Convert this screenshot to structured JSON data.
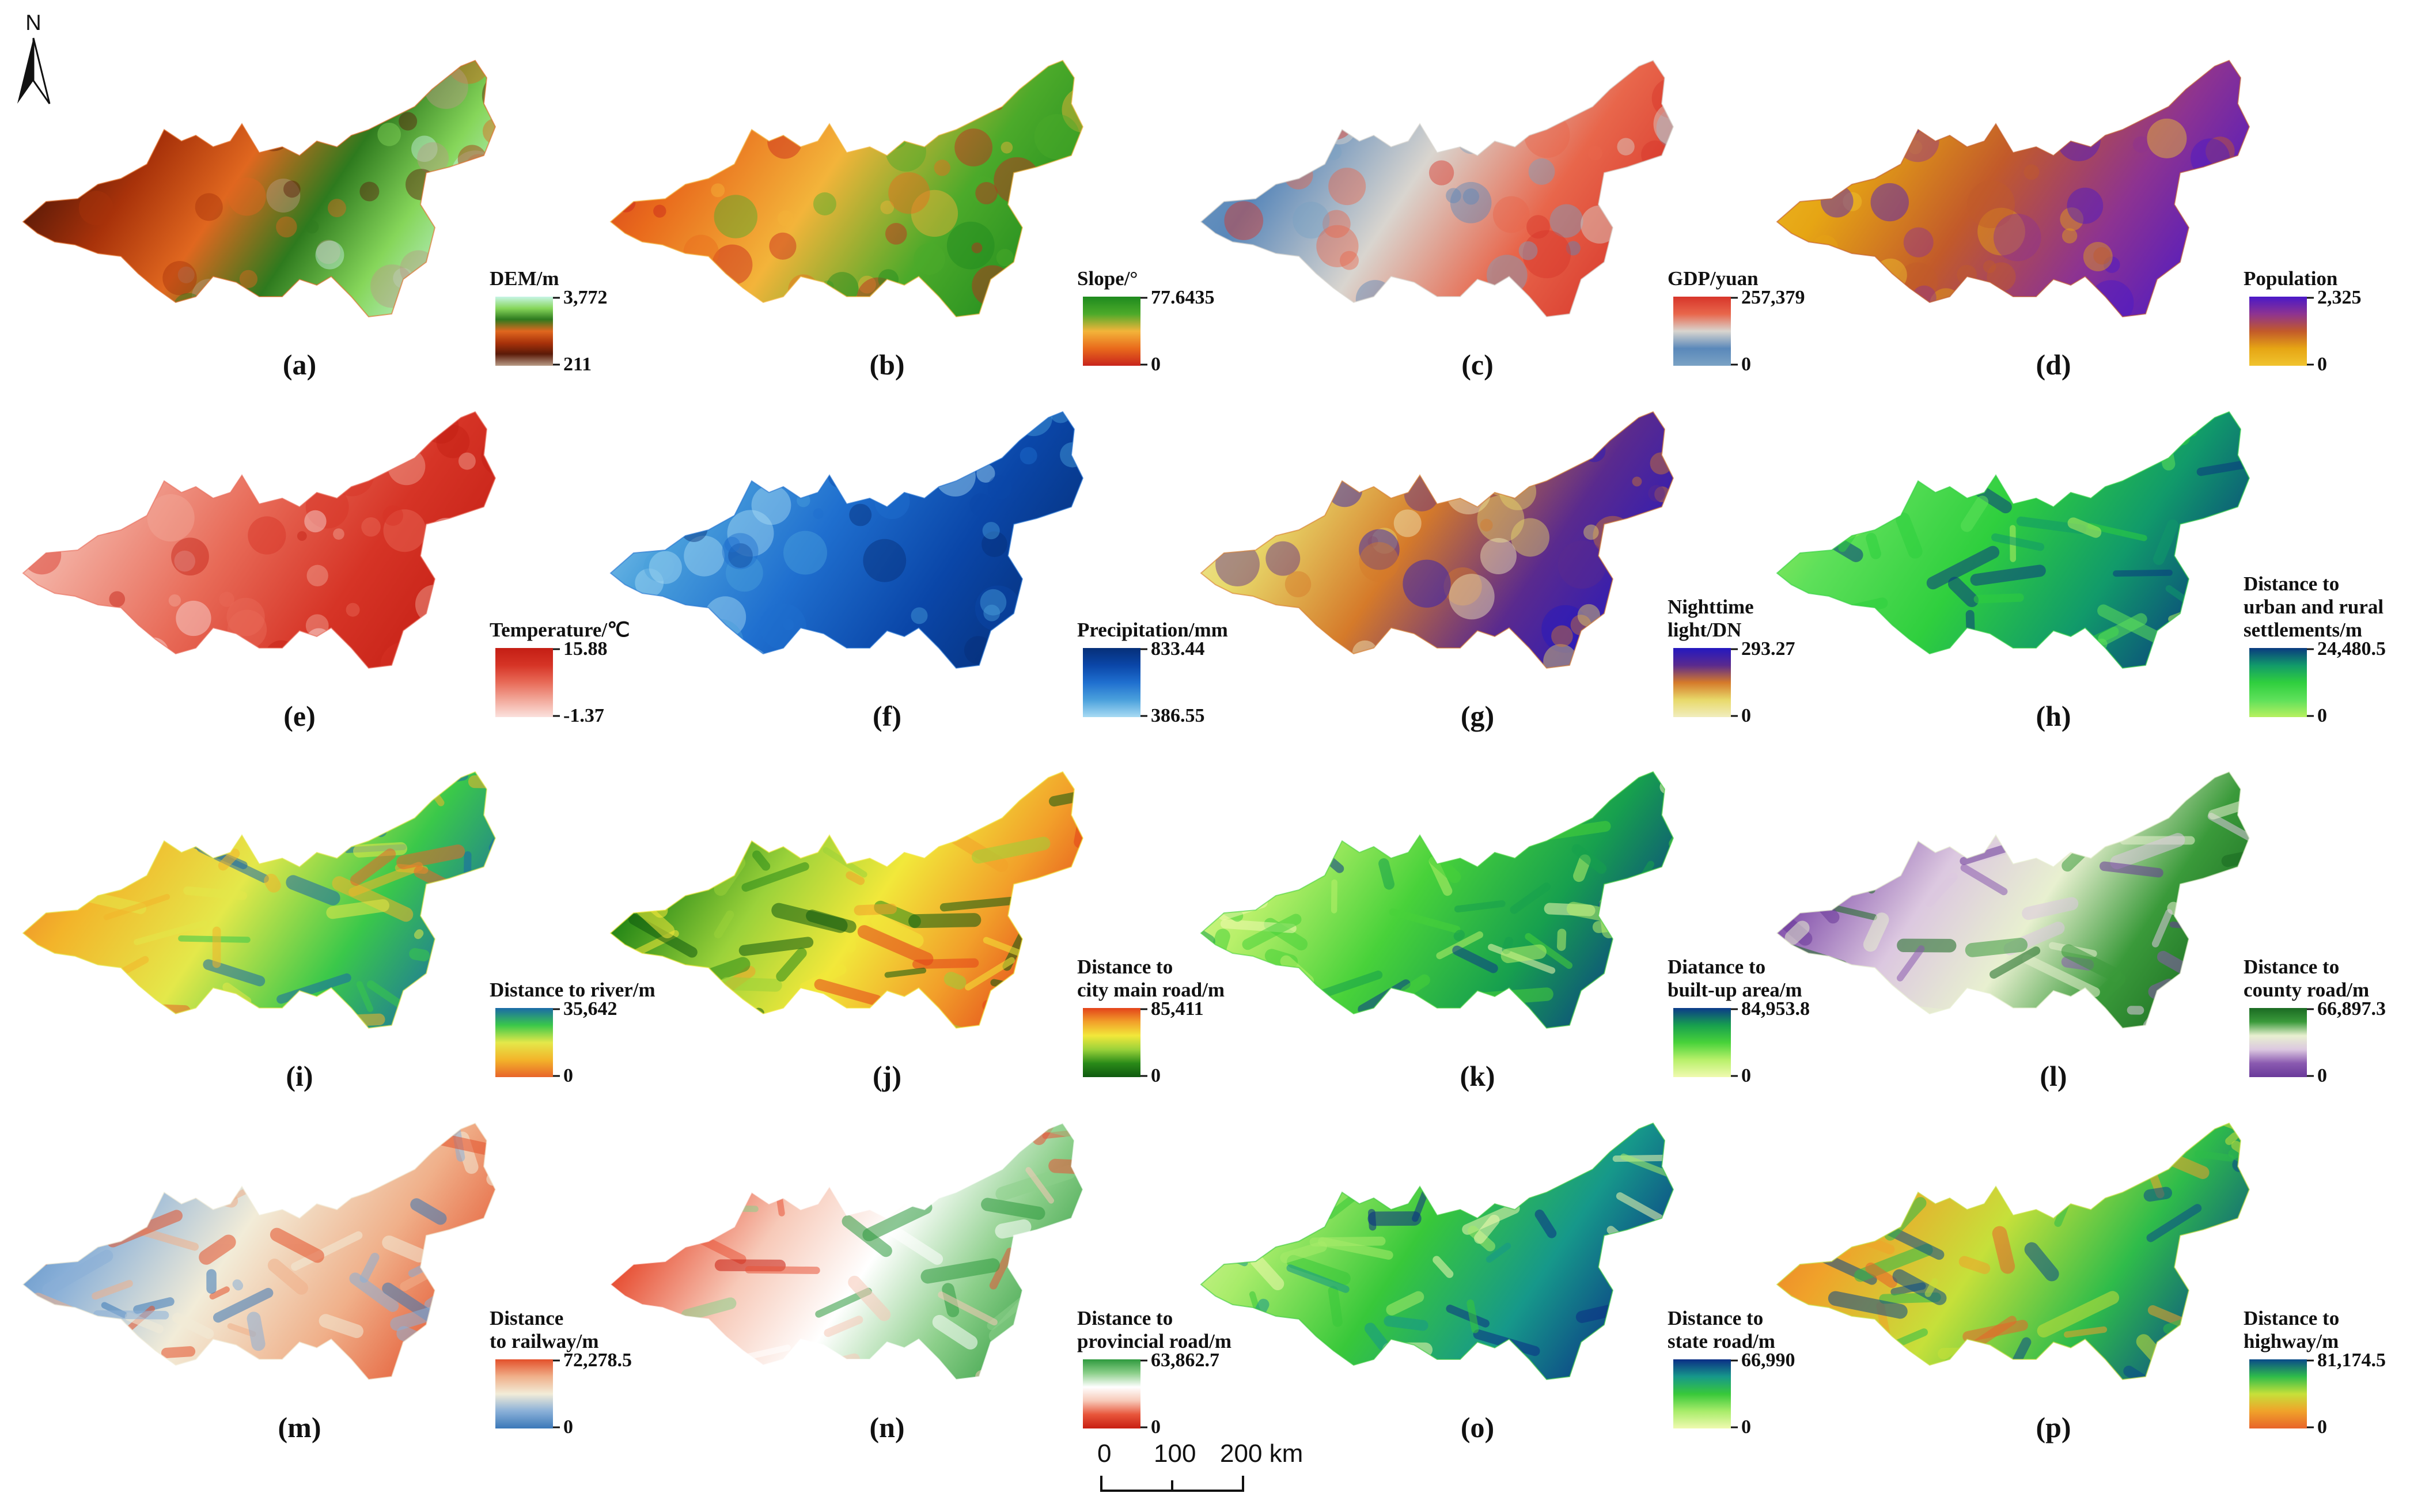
{
  "north_label": "N",
  "scale_bar": {
    "ticks": [
      "0",
      "100",
      "200 km"
    ]
  },
  "colors": {
    "a": [
      "#b89b86",
      "#5b1a08",
      "#a8320a",
      "#e0671f",
      "#2e7a1e",
      "#86d65a",
      "#c7f5e6"
    ],
    "b": [
      "#c8241c",
      "#e96a1c",
      "#f3b43a",
      "#4caa2a",
      "#1e8a1e"
    ],
    "c": [
      "#7aa2c4",
      "#5a88ba",
      "#d9d5cf",
      "#e8664b",
      "#d7352a"
    ],
    "d": [
      "#f0c32e",
      "#e6a514",
      "#c25a2a",
      "#8d3391",
      "#4a18c8"
    ],
    "e": [
      "#fbe1dd",
      "#f2a89a",
      "#e86b58",
      "#d63426",
      "#c41e14"
    ],
    "f": [
      "#a8dbf3",
      "#4aa0dc",
      "#1f6fcf",
      "#0a46a8",
      "#062f78"
    ],
    "g": [
      "#f1edbe",
      "#e8d96a",
      "#d57a2a",
      "#5a2a8e",
      "#2418c0"
    ],
    "h": [
      "#b8f060",
      "#5ee05a",
      "#2fcf3e",
      "#119a6a",
      "#0a3a80"
    ],
    "i": [
      "#e8642a",
      "#f3b42a",
      "#e4e84a",
      "#3ac84a",
      "#1a6aa8"
    ],
    "j": [
      "#0f5a10",
      "#2a8a18",
      "#9bd23a",
      "#f2e83a",
      "#f2a02a",
      "#e3421a"
    ],
    "k": [
      "#f0fab0",
      "#b8f06a",
      "#48d23a",
      "#17a04e",
      "#0b3a8a"
    ],
    "l": [
      "#6a3a9a",
      "#8a5ab0",
      "#dcc8e0",
      "#e8f0d0",
      "#3a9a3a",
      "#1a6a22"
    ],
    "m": [
      "#3a78b8",
      "#8ab0d8",
      "#f2ecd8",
      "#f0b08a",
      "#e3502a"
    ],
    "n": [
      "#c81e12",
      "#e8553a",
      "#f7c9b8",
      "#ffffff",
      "#8ccf8a",
      "#2e9a3e"
    ],
    "o": [
      "#f0fab0",
      "#a8ec6a",
      "#38c83a",
      "#16988a",
      "#0b2e86"
    ],
    "p": [
      "#e8642a",
      "#f0a22a",
      "#c6e03a",
      "#2fbc4a",
      "#0a4a8a"
    ]
  },
  "panels": [
    {
      "id": "a",
      "label": "(a)",
      "legend": [
        "DEM/m"
      ],
      "max": "3,772",
      "min": "211"
    },
    {
      "id": "b",
      "label": "(b)",
      "legend": [
        "Slope/°"
      ],
      "max": "77.6435",
      "min": "0"
    },
    {
      "id": "c",
      "label": "(c)",
      "legend": [
        "GDP/yuan"
      ],
      "max": "257,379",
      "min": "0"
    },
    {
      "id": "d",
      "label": "(d)",
      "legend": [
        "Population"
      ],
      "max": "2,325",
      "min": "0"
    },
    {
      "id": "e",
      "label": "(e)",
      "legend": [
        "Temperature/℃"
      ],
      "max": "15.88",
      "min": "-1.37"
    },
    {
      "id": "f",
      "label": "(f)",
      "legend": [
        "Precipitation/mm"
      ],
      "max": "833.44",
      "min": "386.55"
    },
    {
      "id": "g",
      "label": "(g)",
      "legend": [
        "Nighttime",
        "light/DN"
      ],
      "max": "293.27",
      "min": "0"
    },
    {
      "id": "h",
      "label": "(h)",
      "legend": [
        "Distance to",
        "urban and rural",
        "settlements/m"
      ],
      "max": "24,480.5",
      "min": "0"
    },
    {
      "id": "i",
      "label": "(i)",
      "legend": [
        "Distance to river/m"
      ],
      "max": "35,642",
      "min": "0"
    },
    {
      "id": "j",
      "label": "(j)",
      "legend": [
        "Distance to",
        "city main road/m"
      ],
      "max": "85,411",
      "min": "0"
    },
    {
      "id": "k",
      "label": "(k)",
      "legend": [
        "Diatance to",
        "built-up area/m"
      ],
      "max": "84,953.8",
      "min": "0"
    },
    {
      "id": "l",
      "label": "(l)",
      "legend": [
        "Distance to",
        "county road/m"
      ],
      "max": "66,897.3",
      "min": "0"
    },
    {
      "id": "m",
      "label": "(m)",
      "legend": [
        "Distance",
        "to railway/m"
      ],
      "max": "72,278.5",
      "min": "0"
    },
    {
      "id": "n",
      "label": "(n)",
      "legend": [
        "Distance to",
        "provincial road/m"
      ],
      "max": "63,862.7",
      "min": "0"
    },
    {
      "id": "o",
      "label": "(o)",
      "legend": [
        "Distance to",
        "state road/m"
      ],
      "max": "66,990",
      "min": "0"
    },
    {
      "id": "p",
      "label": "(p)",
      "legend": [
        "Distance to",
        "highway/m"
      ],
      "max": "81,174.5",
      "min": "0"
    }
  ]
}
